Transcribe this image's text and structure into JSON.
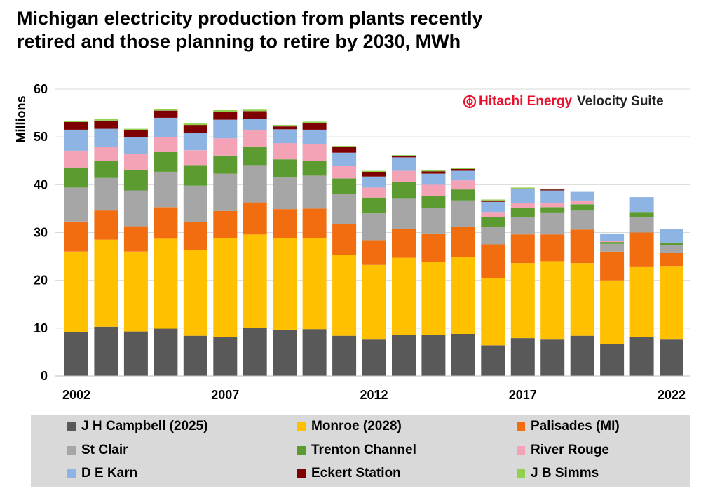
{
  "title": {
    "line1": "Michigan electricity production from plants recently",
    "line2": "retired and those planning to retire by 2030, MWh"
  },
  "watermark": {
    "brand": "Hitachi Energy",
    "product": "Velocity Suite",
    "brand_color": "#e8112d",
    "logo_icon": "hitachi-energy-logo"
  },
  "chart_data": {
    "type": "bar",
    "stacked": true,
    "title": "Michigan electricity production from plants recently retired and those planning to retire by 2030, MWh",
    "ylabel": "Millions",
    "xlabel": "",
    "ylim": [
      0,
      60
    ],
    "yticks": [
      0,
      10,
      20,
      30,
      40,
      50,
      60
    ],
    "grid": true,
    "legend_position": "bottom",
    "categories": [
      "2002",
      "2003",
      "2004",
      "2005",
      "2006",
      "2007",
      "2008",
      "2009",
      "2010",
      "2011",
      "2012",
      "2013",
      "2014",
      "2015",
      "2016",
      "2017",
      "2018",
      "2019",
      "2020",
      "2021",
      "2022"
    ],
    "xtick_labels": [
      "2002",
      "2007",
      "2012",
      "2017",
      "2022"
    ],
    "series": [
      {
        "name": "J H Campbell (2025)",
        "color": "#595959",
        "values": [
          9.2,
          10.3,
          9.3,
          9.9,
          8.4,
          8.1,
          10.0,
          9.6,
          9.8,
          8.4,
          7.6,
          8.6,
          8.6,
          8.8,
          6.4,
          7.9,
          7.6,
          8.4,
          6.7,
          8.2,
          7.6
        ]
      },
      {
        "name": "Monroe (2028)",
        "color": "#ffc000",
        "values": [
          16.8,
          18.2,
          16.7,
          18.8,
          18.0,
          20.7,
          19.6,
          19.2,
          19.0,
          16.9,
          15.6,
          16.1,
          15.3,
          16.1,
          14.0,
          15.7,
          16.4,
          15.2,
          13.3,
          14.7,
          15.4
        ]
      },
      {
        "name": "Palisades (MI)",
        "color": "#f26d10",
        "values": [
          6.3,
          6.1,
          5.3,
          6.6,
          5.8,
          5.7,
          6.7,
          6.1,
          6.2,
          6.5,
          5.2,
          6.1,
          5.9,
          6.2,
          7.1,
          6.0,
          5.6,
          7.0,
          6.0,
          7.1,
          2.7
        ]
      },
      {
        "name": "St Clair",
        "color": "#a6a6a6",
        "values": [
          7.1,
          6.8,
          7.5,
          7.4,
          7.6,
          7.8,
          7.8,
          6.6,
          6.9,
          6.3,
          5.6,
          6.4,
          5.4,
          5.6,
          3.7,
          3.6,
          4.6,
          4.0,
          1.6,
          3.2,
          1.6
        ]
      },
      {
        "name": "Trenton Channel",
        "color": "#5b9b2f",
        "values": [
          4.2,
          3.6,
          4.3,
          4.2,
          4.3,
          3.8,
          3.9,
          3.8,
          3.1,
          3.2,
          3.3,
          3.3,
          2.5,
          2.3,
          2.0,
          1.9,
          1.1,
          1.3,
          0.4,
          1.1,
          0.6
        ]
      },
      {
        "name": "River Rouge",
        "color": "#f4a2b6",
        "values": [
          3.5,
          2.9,
          3.3,
          3.0,
          3.1,
          3.6,
          3.4,
          3.4,
          3.5,
          2.6,
          2.1,
          2.4,
          2.3,
          1.9,
          1.1,
          1.0,
          0.9,
          0.8,
          0.3,
          0.0,
          0.0
        ]
      },
      {
        "name": "D E Karn",
        "color": "#8eb4e3",
        "values": [
          4.4,
          3.8,
          3.5,
          4.1,
          3.7,
          3.9,
          2.4,
          2.9,
          3.0,
          2.8,
          2.3,
          2.8,
          2.3,
          2.0,
          2.1,
          3.0,
          2.6,
          1.8,
          1.5,
          3.1,
          2.8
        ]
      },
      {
        "name": "Eckert Station",
        "color": "#7f0000",
        "values": [
          1.6,
          1.7,
          1.5,
          1.5,
          1.6,
          1.6,
          1.6,
          0.6,
          1.4,
          1.2,
          1.0,
          0.3,
          0.5,
          0.4,
          0.3,
          0.1,
          0.2,
          0.0,
          0.0,
          0.0,
          0.0
        ]
      },
      {
        "name": "J B Simms",
        "color": "#92d050",
        "values": [
          0.3,
          0.3,
          0.3,
          0.3,
          0.3,
          0.4,
          0.3,
          0.3,
          0.3,
          0.2,
          0.2,
          0.2,
          0.2,
          0.2,
          0.2,
          0.2,
          0.1,
          0.0,
          0.0,
          0.0,
          0.0
        ]
      }
    ]
  }
}
